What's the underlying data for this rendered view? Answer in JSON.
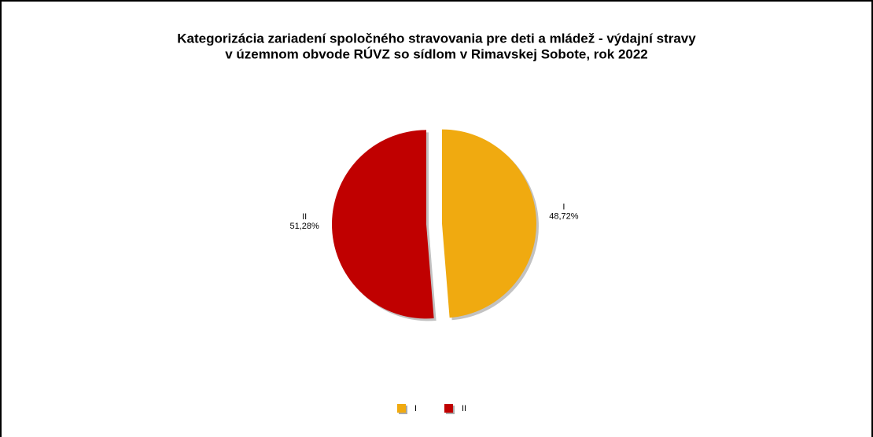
{
  "chart_data": {
    "type": "pie",
    "title": [
      "Kategorizácia zariadení spoločného stravovania pre deti a mládež -  výdajní stravy",
      "v územnom obvode RÚVZ so sídlom v  Rimavskej  Sobote, rok 2022"
    ],
    "categories": [
      "I",
      "II"
    ],
    "values": [
      48.72,
      51.28
    ],
    "value_labels": [
      "48,72%",
      "51,28%"
    ],
    "colors": [
      "#f0aa10",
      "#c00000"
    ],
    "legend": "bottom"
  }
}
